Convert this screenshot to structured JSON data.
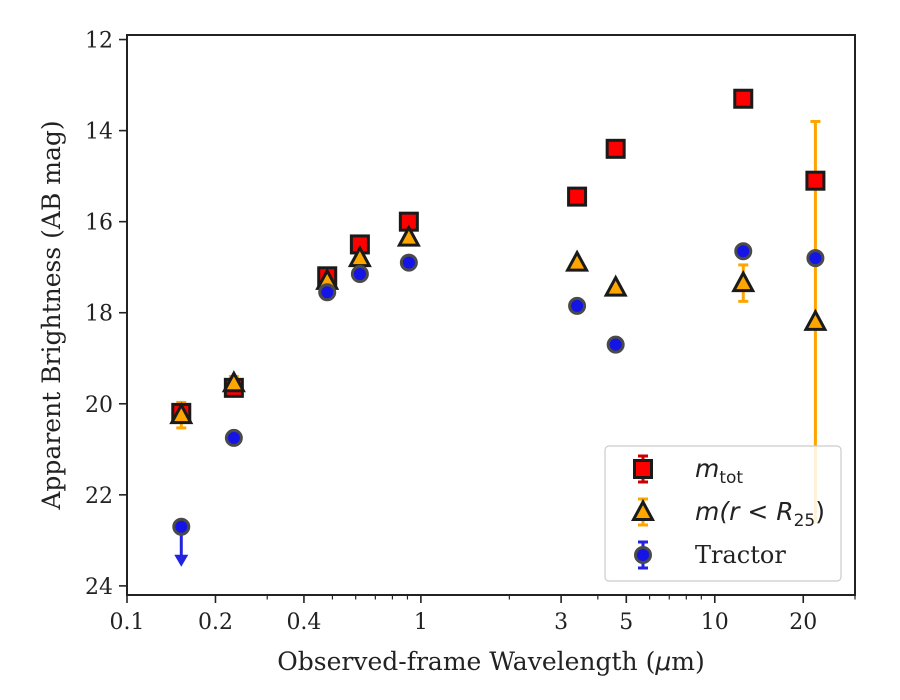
{
  "chart_data": {
    "type": "scatter",
    "xlabel_parts": [
      "Observed-frame Wavelength (",
      "μ",
      "m)"
    ],
    "ylabel": "Apparent Brightness (AB mag)",
    "x_scale": "log",
    "xlim": [
      0.1,
      30
    ],
    "ylim": [
      24.2,
      11.9
    ],
    "y_inverted": true,
    "x_ticks": [
      {
        "v": 0.1,
        "label": "0.1"
      },
      {
        "v": 0.2,
        "label": "0.2"
      },
      {
        "v": 0.4,
        "label": "0.4"
      },
      {
        "v": 1,
        "label": "1"
      },
      {
        "v": 3,
        "label": "3"
      },
      {
        "v": 5,
        "label": "5"
      },
      {
        "v": 10,
        "label": "10"
      },
      {
        "v": 20,
        "label": "20"
      }
    ],
    "x_minor_ticks": [
      0.3,
      0.5,
      0.6,
      0.7,
      0.8,
      0.9,
      2,
      4,
      6,
      7,
      8,
      9,
      30
    ],
    "y_ticks": [
      12,
      14,
      16,
      18,
      20,
      22,
      24
    ],
    "legend_position": "lower-right",
    "series": [
      {
        "legend": {
          "math": "m",
          "sub": "tot",
          "tail": ""
        },
        "marker": "square",
        "color": "#ff0000",
        "edge": "#1a1a1a",
        "err_color": "#cc0000",
        "points": [
          {
            "x": 0.153,
            "y": 20.2,
            "err": 0.1
          },
          {
            "x": 0.231,
            "y": 19.65,
            "err": 0.12
          },
          {
            "x": 0.48,
            "y": 17.2
          },
          {
            "x": 0.62,
            "y": 16.5
          },
          {
            "x": 0.91,
            "y": 16.0
          },
          {
            "x": 3.4,
            "y": 15.45
          },
          {
            "x": 4.6,
            "y": 14.4
          },
          {
            "x": 12.5,
            "y": 13.3
          },
          {
            "x": 22.0,
            "y": 15.1
          }
        ]
      },
      {
        "legend": {
          "math": "m",
          "sub": "25",
          "tail": "(r < R"
        },
        "marker": "triangle",
        "color": "#ffa500",
        "edge": "#1a1a1a",
        "err_color": "#ffa500",
        "points": [
          {
            "x": 0.153,
            "y": 20.25,
            "err": 0.28
          },
          {
            "x": 0.231,
            "y": 19.55,
            "err": 0.15
          },
          {
            "x": 0.48,
            "y": 17.3
          },
          {
            "x": 0.62,
            "y": 16.8
          },
          {
            "x": 0.91,
            "y": 16.35
          },
          {
            "x": 3.4,
            "y": 16.9
          },
          {
            "x": 4.6,
            "y": 17.45
          },
          {
            "x": 12.5,
            "y": 17.35,
            "err": 0.4
          },
          {
            "x": 22.0,
            "y": 18.2,
            "err_low": 4.4,
            "err_high": 4.4
          }
        ]
      },
      {
        "legend": {
          "text": "Tractor"
        },
        "marker": "circle",
        "color": "#1414e6",
        "edge": "#4a4a4a",
        "err_color": "#2222e0",
        "points": [
          {
            "x": 0.153,
            "y": 22.7,
            "upper_limit": true
          },
          {
            "x": 0.231,
            "y": 20.75
          },
          {
            "x": 0.48,
            "y": 17.55
          },
          {
            "x": 0.62,
            "y": 17.15
          },
          {
            "x": 0.91,
            "y": 16.9
          },
          {
            "x": 3.4,
            "y": 17.85
          },
          {
            "x": 4.6,
            "y": 18.7
          },
          {
            "x": 12.5,
            "y": 16.65
          },
          {
            "x": 22.0,
            "y": 16.8
          }
        ]
      }
    ]
  }
}
